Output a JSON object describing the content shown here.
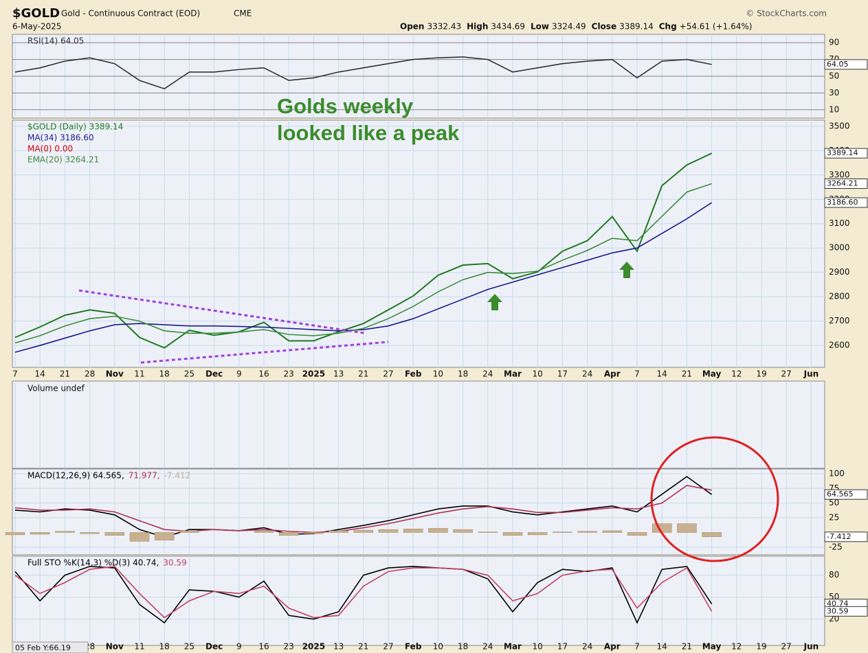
{
  "header": {
    "symbol": "$GOLD",
    "name": "Gold - Continuous Contract (EOD)",
    "exchange": "CME",
    "source": "© StockCharts.com",
    "date": "6-May-2025",
    "stats": [
      {
        "label": "Open",
        "value": "3332.43"
      },
      {
        "label": "High",
        "value": "3434.69"
      },
      {
        "label": "Low",
        "value": "3324.49"
      },
      {
        "label": "Close",
        "value": "3389.14"
      },
      {
        "label": "Chg",
        "value": "+54.61 (+1.64%)"
      }
    ],
    "status": "05 Feb Y:66.19"
  },
  "chart_data": [
    {
      "type": "line",
      "ylim": [
        0,
        100
      ],
      "yticks": [
        10,
        30,
        50,
        70,
        90
      ],
      "series": [
        {
          "name": "RSI(14) 64.05",
          "color": "#333333",
          "tag": "64.05",
          "values": [
            55,
            60,
            68,
            72,
            65,
            45,
            35,
            55,
            55,
            58,
            60,
            45,
            48,
            55,
            60,
            65,
            70,
            72,
            73,
            70,
            55,
            60,
            65,
            68,
            70,
            48,
            68,
            70,
            64.05,
            null,
            null,
            null,
            null
          ]
        }
      ]
    },
    {
      "type": "line",
      "ylim": [
        2510,
        3525
      ],
      "yticks": [
        2600,
        2700,
        2800,
        2900,
        3000,
        3100,
        3200,
        3300,
        3400,
        3500
      ],
      "categories": [
        "7",
        "14",
        "21",
        "28",
        "Nov",
        "11",
        "18",
        "25",
        "Dec",
        "9",
        "16",
        "23",
        "2025",
        "13",
        "21",
        "27",
        "Feb",
        "10",
        "18",
        "24",
        "Mar",
        "10",
        "17",
        "24",
        "Apr",
        "7",
        "14",
        "21",
        "May",
        "12",
        "19",
        "27",
        "Jun"
      ],
      "annotations": [
        "Golds weekly",
        "looked like a peak"
      ],
      "extra_legend": {
        "name": "MA(0) 0.00",
        "color": "#cc0000"
      },
      "series": [
        {
          "name": "$GOLD (Daily) 3389.14",
          "color": "#1f7a1f",
          "tag": "3389.14",
          "values": [
            2633,
            2676,
            2724,
            2746,
            2732,
            2633,
            2590,
            2662,
            2642,
            2656,
            2695,
            2619,
            2619,
            2656,
            2690,
            2746,
            2803,
            2888,
            2930,
            2936,
            2874,
            2902,
            2987,
            3030,
            3129,
            2987,
            3256,
            3341,
            3389.14,
            null,
            null,
            null,
            null
          ]
        },
        {
          "name": "MA(34) 3186.60",
          "color": "#1a1a8c",
          "tag": "3186.60",
          "values": [
            2572,
            2600,
            2630,
            2660,
            2685,
            2690,
            2685,
            2680,
            2680,
            2678,
            2675,
            2670,
            2665,
            2660,
            2665,
            2680,
            2710,
            2750,
            2790,
            2830,
            2860,
            2890,
            2920,
            2950,
            2980,
            3000,
            3060,
            3120,
            3186.6,
            null,
            null,
            null,
            null
          ]
        },
        {
          "name": "EMA(20) 3264.21",
          "color": "#3c8c3c",
          "tag": "3264.21",
          "values": [
            2610,
            2640,
            2680,
            2710,
            2720,
            2700,
            2660,
            2650,
            2650,
            2655,
            2665,
            2645,
            2640,
            2650,
            2670,
            2710,
            2760,
            2820,
            2870,
            2900,
            2895,
            2905,
            2950,
            2990,
            3040,
            3030,
            3130,
            3230,
            3264.21,
            null,
            null,
            null,
            null
          ]
        }
      ]
    },
    {
      "type": "bar",
      "series": [
        {
          "name": "Volume undef",
          "color": "#333333"
        }
      ]
    },
    {
      "type": "line",
      "ylim": [
        -38,
        108
      ],
      "yticks": [
        -25,
        25,
        50,
        75,
        100
      ],
      "series": [
        {
          "name": "MACD(12,26,9) 64.565,",
          "color": "#000000",
          "tag": "64.565",
          "values": [
            38,
            35,
            40,
            38,
            30,
            5,
            -8,
            5,
            5,
            3,
            8,
            -3,
            -2,
            5,
            12,
            20,
            30,
            40,
            45,
            45,
            35,
            30,
            35,
            40,
            45,
            35,
            65,
            95,
            64.565,
            null,
            null,
            null,
            null
          ]
        },
        {
          "name": "71.977,",
          "color": "#b03050",
          "values": [
            42,
            38,
            38,
            40,
            35,
            20,
            5,
            2,
            5,
            3,
            5,
            2,
            0,
            2,
            8,
            15,
            24,
            33,
            40,
            44,
            40,
            34,
            34,
            38,
            42,
            40,
            50,
            80,
            71.977,
            null,
            null,
            null,
            null
          ]
        },
        {
          "name": "-7.412",
          "color": "#c8b090",
          "kind": "histogram",
          "tag": "-7.412",
          "values": [
            -4,
            -3,
            2,
            -2,
            -5,
            -15,
            -13,
            3,
            0,
            0,
            3,
            -5,
            -2,
            3,
            4,
            5,
            6,
            7,
            5,
            1,
            -5,
            -4,
            1,
            2,
            3,
            -5,
            15,
            15,
            -7.412,
            null,
            null,
            null,
            null
          ]
        }
      ]
    },
    {
      "type": "line",
      "ylim": [
        -16,
        106
      ],
      "yticks": [
        20,
        50,
        80
      ],
      "series": [
        {
          "name": "Full STO %K(14,3) %D(3) 40.74,",
          "color": "#000000",
          "tag": "40.74",
          "values": [
            85,
            45,
            80,
            92,
            90,
            40,
            15,
            60,
            58,
            50,
            72,
            25,
            20,
            30,
            80,
            90,
            92,
            90,
            88,
            75,
            30,
            70,
            88,
            85,
            90,
            15,
            88,
            92,
            40.74,
            null,
            null,
            null,
            null
          ]
        },
        {
          "name": "30.59",
          "color": "#c04060",
          "tag": "30.59",
          "values": [
            80,
            55,
            70,
            88,
            92,
            55,
            22,
            45,
            58,
            55,
            65,
            35,
            22,
            25,
            65,
            85,
            90,
            90,
            88,
            80,
            45,
            55,
            80,
            86,
            88,
            35,
            70,
            90,
            30.59,
            null,
            null,
            null,
            null
          ]
        }
      ]
    }
  ]
}
